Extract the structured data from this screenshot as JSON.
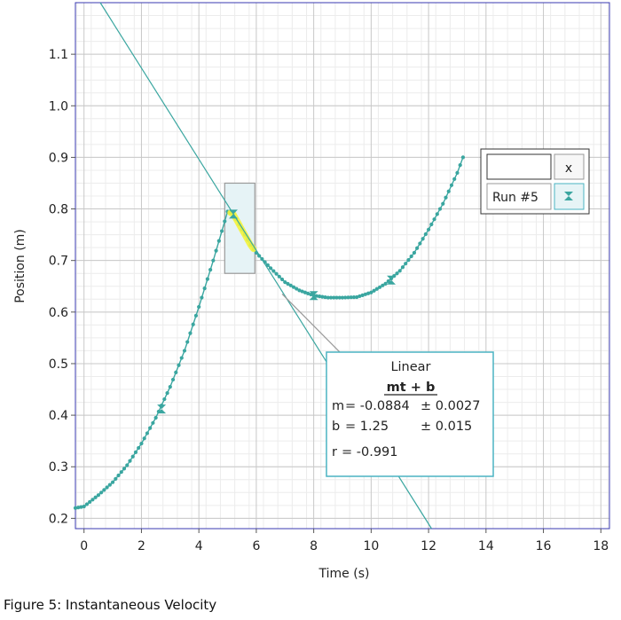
{
  "caption": "Figure 5: Instantaneous Velocity",
  "chart_data": {
    "type": "scatter",
    "xlabel": "Time (s)",
    "ylabel": "Position (m)",
    "xlim": [
      -0.3,
      18.3
    ],
    "ylim": [
      0.18,
      1.2
    ],
    "x_ticks": [
      0,
      2,
      4,
      6,
      8,
      10,
      12,
      14,
      16,
      18
    ],
    "y_ticks": [
      0.2,
      0.3,
      0.4,
      0.5,
      0.6,
      0.7,
      0.8,
      0.9,
      1.0,
      1.1
    ],
    "x_tick_labels": [
      "0",
      "2",
      "4",
      "6",
      "8",
      "10",
      "12",
      "14",
      "16",
      "18"
    ],
    "y_tick_labels": [
      "0.2",
      "0.3",
      "0.4",
      "0.5",
      "0.6",
      "0.7",
      "0.8",
      "0.9",
      "1.0",
      "1.1"
    ],
    "grid": true,
    "series": [
      {
        "name": "Run #5",
        "color": "#3aa6a0",
        "x": [
          -0.3,
          0,
          0.5,
          1.0,
          1.5,
          2.0,
          2.5,
          3.0,
          3.5,
          4.0,
          4.5,
          5.0,
          5.2,
          5.5,
          5.8,
          6.0,
          6.5,
          7.0,
          7.5,
          8.0,
          8.5,
          9.0,
          9.5,
          10.0,
          10.5,
          11.0,
          11.5,
          12.0,
          12.5,
          13.0,
          13.2
        ],
        "y": [
          0.22,
          0.223,
          0.245,
          0.27,
          0.303,
          0.345,
          0.395,
          0.455,
          0.525,
          0.61,
          0.7,
          0.795,
          0.79,
          0.76,
          0.73,
          0.715,
          0.685,
          0.658,
          0.642,
          0.632,
          0.628,
          0.628,
          0.629,
          0.638,
          0.655,
          0.68,
          0.715,
          0.76,
          0.81,
          0.87,
          0.9
        ],
        "markers_x": [
          2.7,
          5.2,
          8.0,
          10.7
        ],
        "markers_y": [
          0.412,
          0.79,
          0.632,
          0.662
        ]
      }
    ],
    "fit_line": {
      "type": "linear",
      "m": -0.0884,
      "b": 1.25,
      "color": "#3aa6a0"
    },
    "highlight_region": {
      "x": [
        4.9,
        5.95
      ],
      "y": [
        0.675,
        0.85
      ],
      "fill": "#e6f3f6",
      "stroke": "#999999"
    },
    "highlight_fit_segment": {
      "x": [
        5.1,
        5.9
      ],
      "color": "#f4f43c"
    },
    "annotation": {
      "title": "Linear",
      "equation": "mt + b",
      "m_label": "m",
      "m_value": "= -0.0884",
      "m_uncert": "± 0.0027",
      "b_label": "b",
      "b_value": "= 1.25",
      "b_uncert": "± 0.015",
      "r_label": "r",
      "r_value": "= -0.991",
      "pointer_from": [
        6.9,
        0.635
      ]
    },
    "legend": {
      "placement": "top-right",
      "close_label": "x",
      "run_label": "Run #5",
      "marker_color": "#3aa6a0"
    }
  }
}
